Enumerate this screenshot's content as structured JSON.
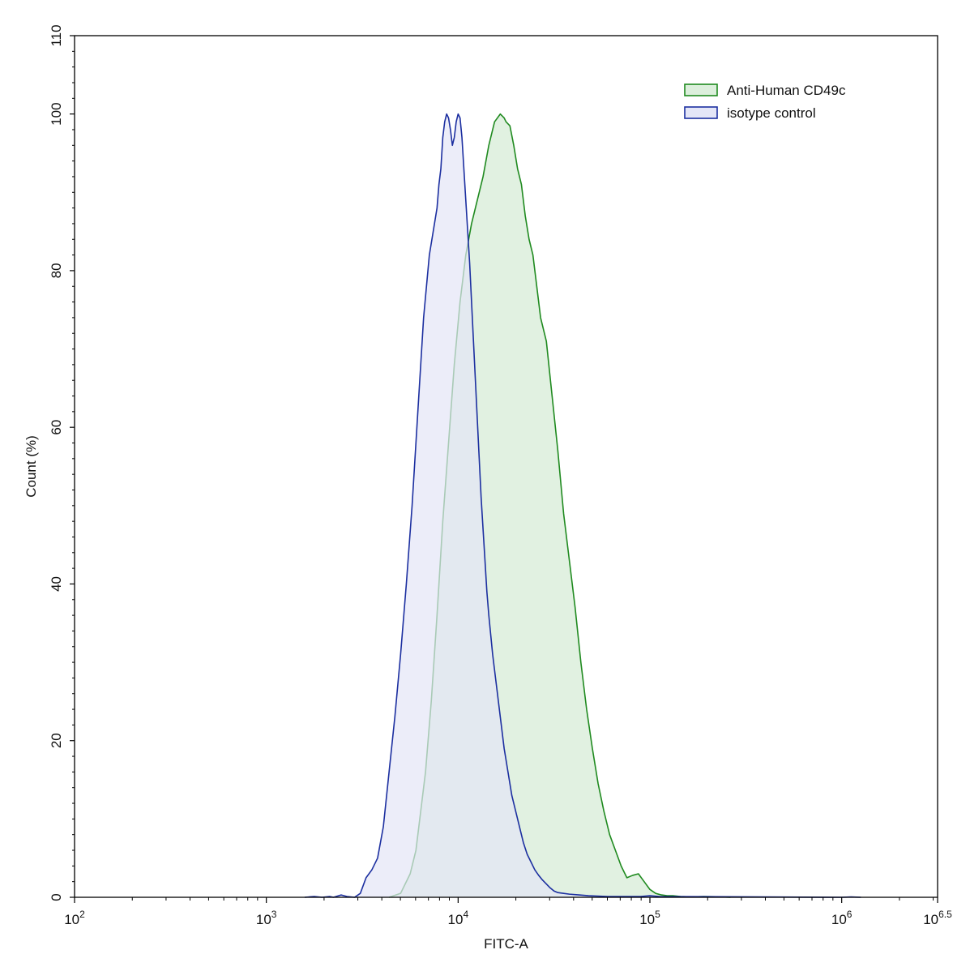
{
  "chart_data": {
    "type": "area",
    "title": "",
    "xlabel": "FITC-A",
    "ylabel": "Count  (%)",
    "x_scale": "log10",
    "xlim": [
      100,
      3162277.66
    ],
    "ylim": [
      0,
      110
    ],
    "x_ticks": [
      {
        "value": 100,
        "base": "10",
        "exp": "2"
      },
      {
        "value": 1000,
        "base": "10",
        "exp": "3"
      },
      {
        "value": 10000,
        "base": "10",
        "exp": "4"
      },
      {
        "value": 100000,
        "base": "10",
        "exp": "5"
      },
      {
        "value": 1000000,
        "base": "10",
        "exp": "6"
      },
      {
        "value": 3162277.66,
        "base": "10",
        "exp": "6.5"
      }
    ],
    "y_ticks": [
      "0",
      "20",
      "40",
      "60",
      "80",
      "100",
      "110"
    ],
    "y_tick_values": [
      0,
      20,
      40,
      60,
      80,
      100,
      110
    ],
    "grid": false,
    "legend_position": "top-right",
    "series": [
      {
        "name": "Anti-Human CD49c",
        "line_color": "#1f8a1f",
        "fill_color": "#dcefdc",
        "x": [
          4365,
          5012,
          5248,
          5623,
          6026,
          6310,
          6761,
          7244,
          7762,
          8318,
          8913,
          9550,
          10233,
          10965,
          11749,
          12589,
          13490,
          14454,
          15488,
          16596,
          17378,
          17783,
          18621,
          19498,
          20417,
          21380,
          22387,
          23442,
          24547,
          25704,
          26915,
          28840,
          30903,
          33113,
          35481,
          38019,
          40738,
          43652,
          46774,
          50119,
          53703,
          57544,
          61660,
          66069,
          70795,
          75858,
          81283,
          87096,
          93325,
          100000,
          107152,
          114815,
          123027,
          131826,
          144544,
          165959,
          190546,
          239883,
          263027
        ],
        "y": [
          0,
          0.5,
          1.5,
          3,
          6,
          10,
          16,
          25,
          36,
          48,
          58,
          68,
          76,
          82,
          86,
          89,
          92,
          96,
          99,
          100,
          99.5,
          99,
          98.5,
          96,
          93,
          91,
          87,
          84,
          82,
          78,
          74,
          71,
          64,
          57,
          49,
          43,
          37,
          30,
          24,
          19,
          14.5,
          11,
          8,
          6,
          4,
          2.5,
          2.8,
          3,
          2,
          1,
          0.5,
          0.3,
          0.2,
          0.2,
          0.1,
          0.05,
          0.1,
          0.05,
          0
        ],
        "values": [
          0,
          0.5,
          1.5,
          3,
          6,
          10,
          16,
          25,
          36,
          48,
          58,
          68,
          76,
          82,
          86,
          89,
          92,
          96,
          99,
          100,
          99.5,
          99,
          98.5,
          96,
          93,
          91,
          87,
          84,
          82,
          78,
          74,
          71,
          64,
          57,
          49,
          43,
          37,
          30,
          24,
          19,
          14.5,
          11,
          8,
          6,
          4,
          2.5,
          2.8,
          3,
          2,
          1,
          0.5,
          0.3,
          0.2,
          0.2,
          0.1,
          0.05,
          0.1,
          0.05,
          0
        ]
      },
      {
        "name": "isotype control",
        "line_color": "#1c2fa0",
        "fill_color": "#e4e6f7",
        "x": [
          1585,
          1778,
          1950,
          2138,
          2239,
          2455,
          2630,
          2884,
          3090,
          3311,
          3548,
          3802,
          4074,
          4365,
          4677,
          5012,
          5370,
          5754,
          6166,
          6607,
          7079,
          7413,
          7762,
          7943,
          8128,
          8318,
          8511,
          8710,
          8913,
          9120,
          9333,
          9550,
          9772,
          10000,
          10233,
          10471,
          10715,
          10965,
          11220,
          11482,
          11749,
          12023,
          12303,
          12589,
          12882,
          13183,
          13490,
          13804,
          14125,
          14454,
          15136,
          15849,
          16596,
          17378,
          18197,
          19055,
          19953,
          20893,
          21878,
          22909,
          23988,
          25119,
          26303,
          27542,
          28840,
          30200,
          31623,
          33113,
          35481,
          38019,
          42658,
          47863,
          60256,
          89125,
          100000,
          112202,
          1000000,
          1122018,
          1258925
        ],
        "y": [
          0,
          0.1,
          0,
          0.1,
          0,
          0.3,
          0.1,
          0,
          0.5,
          2.5,
          3.5,
          5,
          9,
          16,
          23,
          31,
          40,
          50,
          62,
          74,
          82,
          85,
          88,
          91,
          93,
          97,
          99,
          100,
          99.5,
          98,
          96,
          97,
          99,
          100,
          99.5,
          97,
          93,
          89,
          85,
          81,
          76,
          71,
          66,
          61,
          56,
          51,
          47,
          43,
          39,
          36,
          31,
          27,
          23,
          19,
          16,
          13,
          11,
          9,
          7,
          5.5,
          4.5,
          3.5,
          2.8,
          2.2,
          1.7,
          1.2,
          0.8,
          0.6,
          0.5,
          0.4,
          0.3,
          0.2,
          0.1,
          0.1,
          0.2,
          0.1,
          0,
          0.05,
          0
        ],
        "values": [
          0,
          0.1,
          0,
          0.1,
          0,
          0.3,
          0.1,
          0,
          0.5,
          2.5,
          3.5,
          5,
          9,
          16,
          23,
          31,
          40,
          50,
          62,
          74,
          82,
          85,
          88,
          91,
          93,
          97,
          99,
          100,
          99.5,
          98,
          96,
          97,
          99,
          100,
          99.5,
          97,
          93,
          89,
          85,
          81,
          76,
          71,
          66,
          61,
          56,
          51,
          47,
          43,
          39,
          36,
          31,
          27,
          23,
          19,
          16,
          13,
          11,
          9,
          7,
          5.5,
          4.5,
          3.5,
          2.8,
          2.2,
          1.7,
          1.2,
          0.8,
          0.6,
          0.5,
          0.4,
          0.3,
          0.2,
          0.1,
          0.1,
          0.2,
          0.1,
          0,
          0.05,
          0
        ]
      }
    ]
  }
}
